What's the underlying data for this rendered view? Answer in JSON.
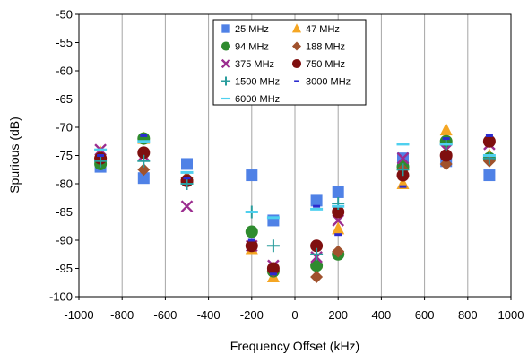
{
  "chart_data": {
    "type": "scatter",
    "title": "",
    "xlabel": "Frequency Offset (kHz)",
    "ylabel": "Spurious (dB)",
    "xlim": [
      -1000,
      1000
    ],
    "ylim": [
      -100,
      -50
    ],
    "xticks": [
      -1000,
      -800,
      -600,
      -400,
      -200,
      0,
      200,
      400,
      600,
      800,
      1000
    ],
    "yticks": [
      -50,
      -55,
      -60,
      -65,
      -70,
      -75,
      -80,
      -85,
      -90,
      -95,
      -100
    ],
    "grid": "vertical",
    "legend_position": "top-center",
    "series": [
      {
        "name": "25 MHz",
        "marker": "square",
        "color": "#4f81e6",
        "points": [
          [
            -900,
            -77
          ],
          [
            -700,
            -79
          ],
          [
            -500,
            -76.5
          ],
          [
            -200,
            -78.5
          ],
          [
            -100,
            -86.5
          ],
          [
            100,
            -83
          ],
          [
            200,
            -81.5
          ],
          [
            500,
            -75.5
          ],
          [
            700,
            -76
          ],
          [
            900,
            -78.5
          ]
        ]
      },
      {
        "name": "47 MHz",
        "marker": "triangle",
        "color": "#f5a623",
        "points": [
          [
            -900,
            -74.5
          ],
          [
            -700,
            -72
          ],
          [
            -500,
            -79
          ],
          [
            -200,
            -91.5
          ],
          [
            -100,
            -96.5
          ],
          [
            100,
            -94
          ],
          [
            200,
            -88
          ],
          [
            500,
            -80
          ],
          [
            700,
            -70.5
          ],
          [
            900,
            -75
          ]
        ]
      },
      {
        "name": "94 MHz",
        "marker": "circle",
        "color": "#2e8b2e",
        "points": [
          [
            -900,
            -76.5
          ],
          [
            -700,
            -72
          ],
          [
            -500,
            -79.5
          ],
          [
            -200,
            -88.5
          ],
          [
            -100,
            -95.5
          ],
          [
            100,
            -94.5
          ],
          [
            200,
            -92.5
          ],
          [
            500,
            -77
          ],
          [
            700,
            -72.5
          ],
          [
            900,
            -75.5
          ]
        ]
      },
      {
        "name": "188 MHz",
        "marker": "diamond",
        "color": "#a0522d",
        "points": [
          [
            -900,
            -75.5
          ],
          [
            -700,
            -77.5
          ],
          [
            -500,
            -79
          ],
          [
            -200,
            -91
          ],
          [
            -100,
            -95.5
          ],
          [
            100,
            -96.5
          ],
          [
            200,
            -92
          ],
          [
            500,
            -77.5
          ],
          [
            700,
            -76.5
          ],
          [
            900,
            -76
          ]
        ]
      },
      {
        "name": "375 MHz",
        "marker": "x",
        "color": "#9b2d8f",
        "points": [
          [
            -900,
            -74
          ],
          [
            -700,
            -75
          ],
          [
            -500,
            -84
          ],
          [
            -200,
            -91
          ],
          [
            -100,
            -94.5
          ],
          [
            100,
            -93
          ],
          [
            200,
            -86.5
          ],
          [
            500,
            -75.5
          ],
          [
            700,
            -74
          ],
          [
            900,
            -73
          ]
        ]
      },
      {
        "name": "750 MHz",
        "marker": "circle",
        "color": "#7f0f0f",
        "points": [
          [
            -900,
            -75.5
          ],
          [
            -700,
            -74.5
          ],
          [
            -500,
            -79.5
          ],
          [
            -200,
            -91
          ],
          [
            -100,
            -95
          ],
          [
            100,
            -91
          ],
          [
            200,
            -85
          ],
          [
            500,
            -78.5
          ],
          [
            700,
            -75
          ],
          [
            900,
            -72.5
          ]
        ]
      },
      {
        "name": "1500 MHz",
        "marker": "plus",
        "color": "#2a9d9d",
        "points": [
          [
            -900,
            -76
          ],
          [
            -700,
            -76
          ],
          [
            -500,
            -80
          ],
          [
            -200,
            -85
          ],
          [
            -100,
            -91
          ],
          [
            100,
            -92.5
          ],
          [
            200,
            -83.5
          ],
          [
            500,
            -77.5
          ],
          [
            700,
            -73
          ],
          [
            900,
            -75.5
          ]
        ]
      },
      {
        "name": "3000 MHz",
        "marker": "dash",
        "color": "#2b2bcf",
        "points": [
          [
            -900,
            -75
          ],
          [
            -700,
            -71.5
          ],
          [
            -500,
            -79
          ],
          [
            -200,
            -90
          ],
          [
            -100,
            -96
          ],
          [
            100,
            -84
          ],
          [
            200,
            -89
          ],
          [
            500,
            -80.5
          ],
          [
            700,
            -72
          ],
          [
            900,
            -71.5
          ]
        ]
      },
      {
        "name": "6000 MHz",
        "marker": "bar",
        "color": "#4fd0ef",
        "points": [
          [
            -900,
            -74
          ],
          [
            -700,
            -72.5
          ],
          [
            -500,
            -78
          ],
          [
            -200,
            -85
          ],
          [
            -100,
            -86
          ],
          [
            100,
            -84.5
          ],
          [
            200,
            -84
          ],
          [
            500,
            -73
          ],
          [
            700,
            -73
          ],
          [
            900,
            -75
          ]
        ]
      }
    ]
  }
}
